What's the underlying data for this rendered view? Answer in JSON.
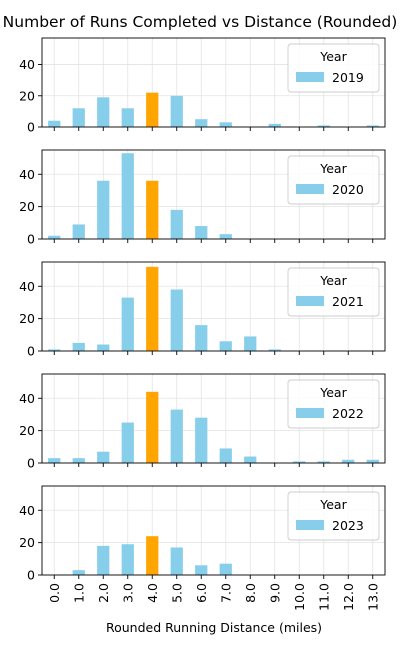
{
  "figure": {
    "title": "Number of Runs Completed vs Distance (Rounded)",
    "xlabel": "Rounded Running Distance (miles)"
  },
  "colors": {
    "bar": "#87CEEB",
    "highlight": "#FFA500",
    "grid": "#e3e3e3",
    "axis": "#000000"
  },
  "chart_data": [
    {
      "type": "bar",
      "legend_title": "Year",
      "series": [
        {
          "name": "2019",
          "values": [
            4,
            12,
            19,
            12,
            22,
            20,
            5,
            3,
            0,
            2,
            0,
            1,
            0,
            1
          ]
        }
      ],
      "categories": [
        "0.0",
        "1.0",
        "2.0",
        "3.0",
        "4.0",
        "5.0",
        "6.0",
        "7.0",
        "8.0",
        "9.0",
        "10.0",
        "11.0",
        "12.0",
        "13.0"
      ],
      "highlight_category": "4.0",
      "ylim": [
        0,
        57
      ],
      "yticks": [
        0,
        20,
        40
      ],
      "grid": true,
      "legend_position": "top-right"
    },
    {
      "type": "bar",
      "legend_title": "Year",
      "series": [
        {
          "name": "2020",
          "values": [
            2,
            9,
            36,
            53,
            36,
            18,
            8,
            3,
            0,
            0,
            0,
            0,
            0,
            0
          ]
        }
      ],
      "categories": [
        "0.0",
        "1.0",
        "2.0",
        "3.0",
        "4.0",
        "5.0",
        "6.0",
        "7.0",
        "8.0",
        "9.0",
        "10.0",
        "11.0",
        "12.0",
        "13.0"
      ],
      "highlight_category": "4.0",
      "ylim": [
        0,
        55
      ],
      "yticks": [
        0,
        20,
        40
      ],
      "grid": true,
      "legend_position": "top-right"
    },
    {
      "type": "bar",
      "legend_title": "Year",
      "series": [
        {
          "name": "2021",
          "values": [
            1,
            5,
            4,
            33,
            52,
            38,
            16,
            6,
            9,
            1,
            0,
            0,
            0,
            0
          ]
        }
      ],
      "categories": [
        "0.0",
        "1.0",
        "2.0",
        "3.0",
        "4.0",
        "5.0",
        "6.0",
        "7.0",
        "8.0",
        "9.0",
        "10.0",
        "11.0",
        "12.0",
        "13.0"
      ],
      "highlight_category": "4.0",
      "ylim": [
        0,
        55
      ],
      "yticks": [
        0,
        20,
        40
      ],
      "grid": true,
      "legend_position": "top-right"
    },
    {
      "type": "bar",
      "legend_title": "Year",
      "series": [
        {
          "name": "2022",
          "values": [
            3,
            3,
            7,
            25,
            44,
            33,
            28,
            9,
            4,
            0,
            1,
            1,
            2,
            2
          ]
        }
      ],
      "categories": [
        "0.0",
        "1.0",
        "2.0",
        "3.0",
        "4.0",
        "5.0",
        "6.0",
        "7.0",
        "8.0",
        "9.0",
        "10.0",
        "11.0",
        "12.0",
        "13.0"
      ],
      "highlight_category": "4.0",
      "ylim": [
        0,
        55
      ],
      "yticks": [
        0,
        20,
        40
      ],
      "grid": true,
      "legend_position": "top-right"
    },
    {
      "type": "bar",
      "legend_title": "Year",
      "series": [
        {
          "name": "2023",
          "values": [
            0,
            3,
            18,
            19,
            24,
            17,
            6,
            7,
            0,
            0,
            0,
            0,
            0,
            0
          ]
        }
      ],
      "categories": [
        "0.0",
        "1.0",
        "2.0",
        "3.0",
        "4.0",
        "5.0",
        "6.0",
        "7.0",
        "8.0",
        "9.0",
        "10.0",
        "11.0",
        "12.0",
        "13.0"
      ],
      "highlight_category": "4.0",
      "ylim": [
        0,
        55
      ],
      "yticks": [
        0,
        20,
        40
      ],
      "grid": true,
      "legend_position": "top-right"
    }
  ]
}
